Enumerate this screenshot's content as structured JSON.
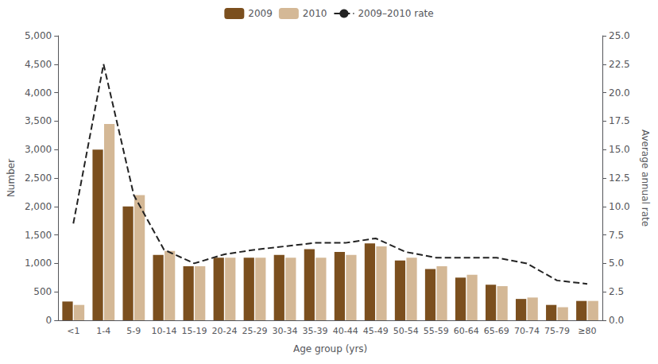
{
  "chart_data": {
    "type": "bar",
    "xlabel": "Age group (yrs)",
    "ylabel": "Number",
    "y2label": "Average annual rate",
    "categories": [
      "<1",
      "1-4",
      "5-9",
      "10-14",
      "15-19",
      "20-24",
      "25-29",
      "30-34",
      "35-39",
      "40-44",
      "45-49",
      "50-54",
      "55-59",
      "60-64",
      "65-69",
      "70-74",
      "75-79",
      "≥80"
    ],
    "series": [
      {
        "name": "2009",
        "type": "bar",
        "color": "#7B4F1E",
        "values": [
          330,
          3000,
          2000,
          1150,
          950,
          1100,
          1100,
          1150,
          1250,
          1200,
          1350,
          1050,
          900,
          750,
          625,
          375,
          270,
          340
        ]
      },
      {
        "name": "2010",
        "type": "bar",
        "color": "#D4B896",
        "values": [
          270,
          3450,
          2200,
          1220,
          950,
          1100,
          1100,
          1100,
          1100,
          1150,
          1300,
          1100,
          950,
          800,
          600,
          400,
          230,
          340
        ]
      },
      {
        "name": "2009–2010 rate",
        "type": "line",
        "axis": "y2",
        "color": "#222222",
        "line_style": "dashed",
        "values": [
          8.5,
          22.5,
          11.0,
          6.2,
          5.0,
          5.8,
          6.2,
          6.5,
          6.8,
          6.8,
          7.2,
          6.0,
          5.5,
          5.5,
          5.5,
          5.0,
          3.5,
          3.2
        ]
      }
    ],
    "ylim": [
      0,
      5000
    ],
    "yticks": [
      0,
      500,
      {
        "value": 1000,
        "label": "1,000"
      },
      {
        "value": 1500,
        "label": "1,500"
      },
      {
        "value": 2000,
        "label": "2,000"
      },
      {
        "value": 2500,
        "label": "2,500"
      },
      {
        "value": 3000,
        "label": "3,000"
      },
      {
        "value": 3500,
        "label": "3,500"
      },
      {
        "value": 4000,
        "label": "4,000"
      },
      {
        "value": 4500,
        "label": "4,500"
      },
      {
        "value": 5000,
        "label": "5,000"
      }
    ],
    "y2lim": [
      0,
      25.0
    ],
    "y2ticks": [
      {
        "value": 0.0,
        "label": "0.0"
      },
      2.5,
      {
        "value": 5.0,
        "label": "5.0"
      },
      7.5,
      {
        "value": 10.0,
        "label": "10.0"
      },
      12.5,
      {
        "value": 15.0,
        "label": "15.0"
      },
      17.5,
      {
        "value": 20.0,
        "label": "20.0"
      },
      22.5,
      {
        "value": 25.0,
        "label": "25.0"
      }
    ],
    "grid": false,
    "legend": "upper center"
  }
}
